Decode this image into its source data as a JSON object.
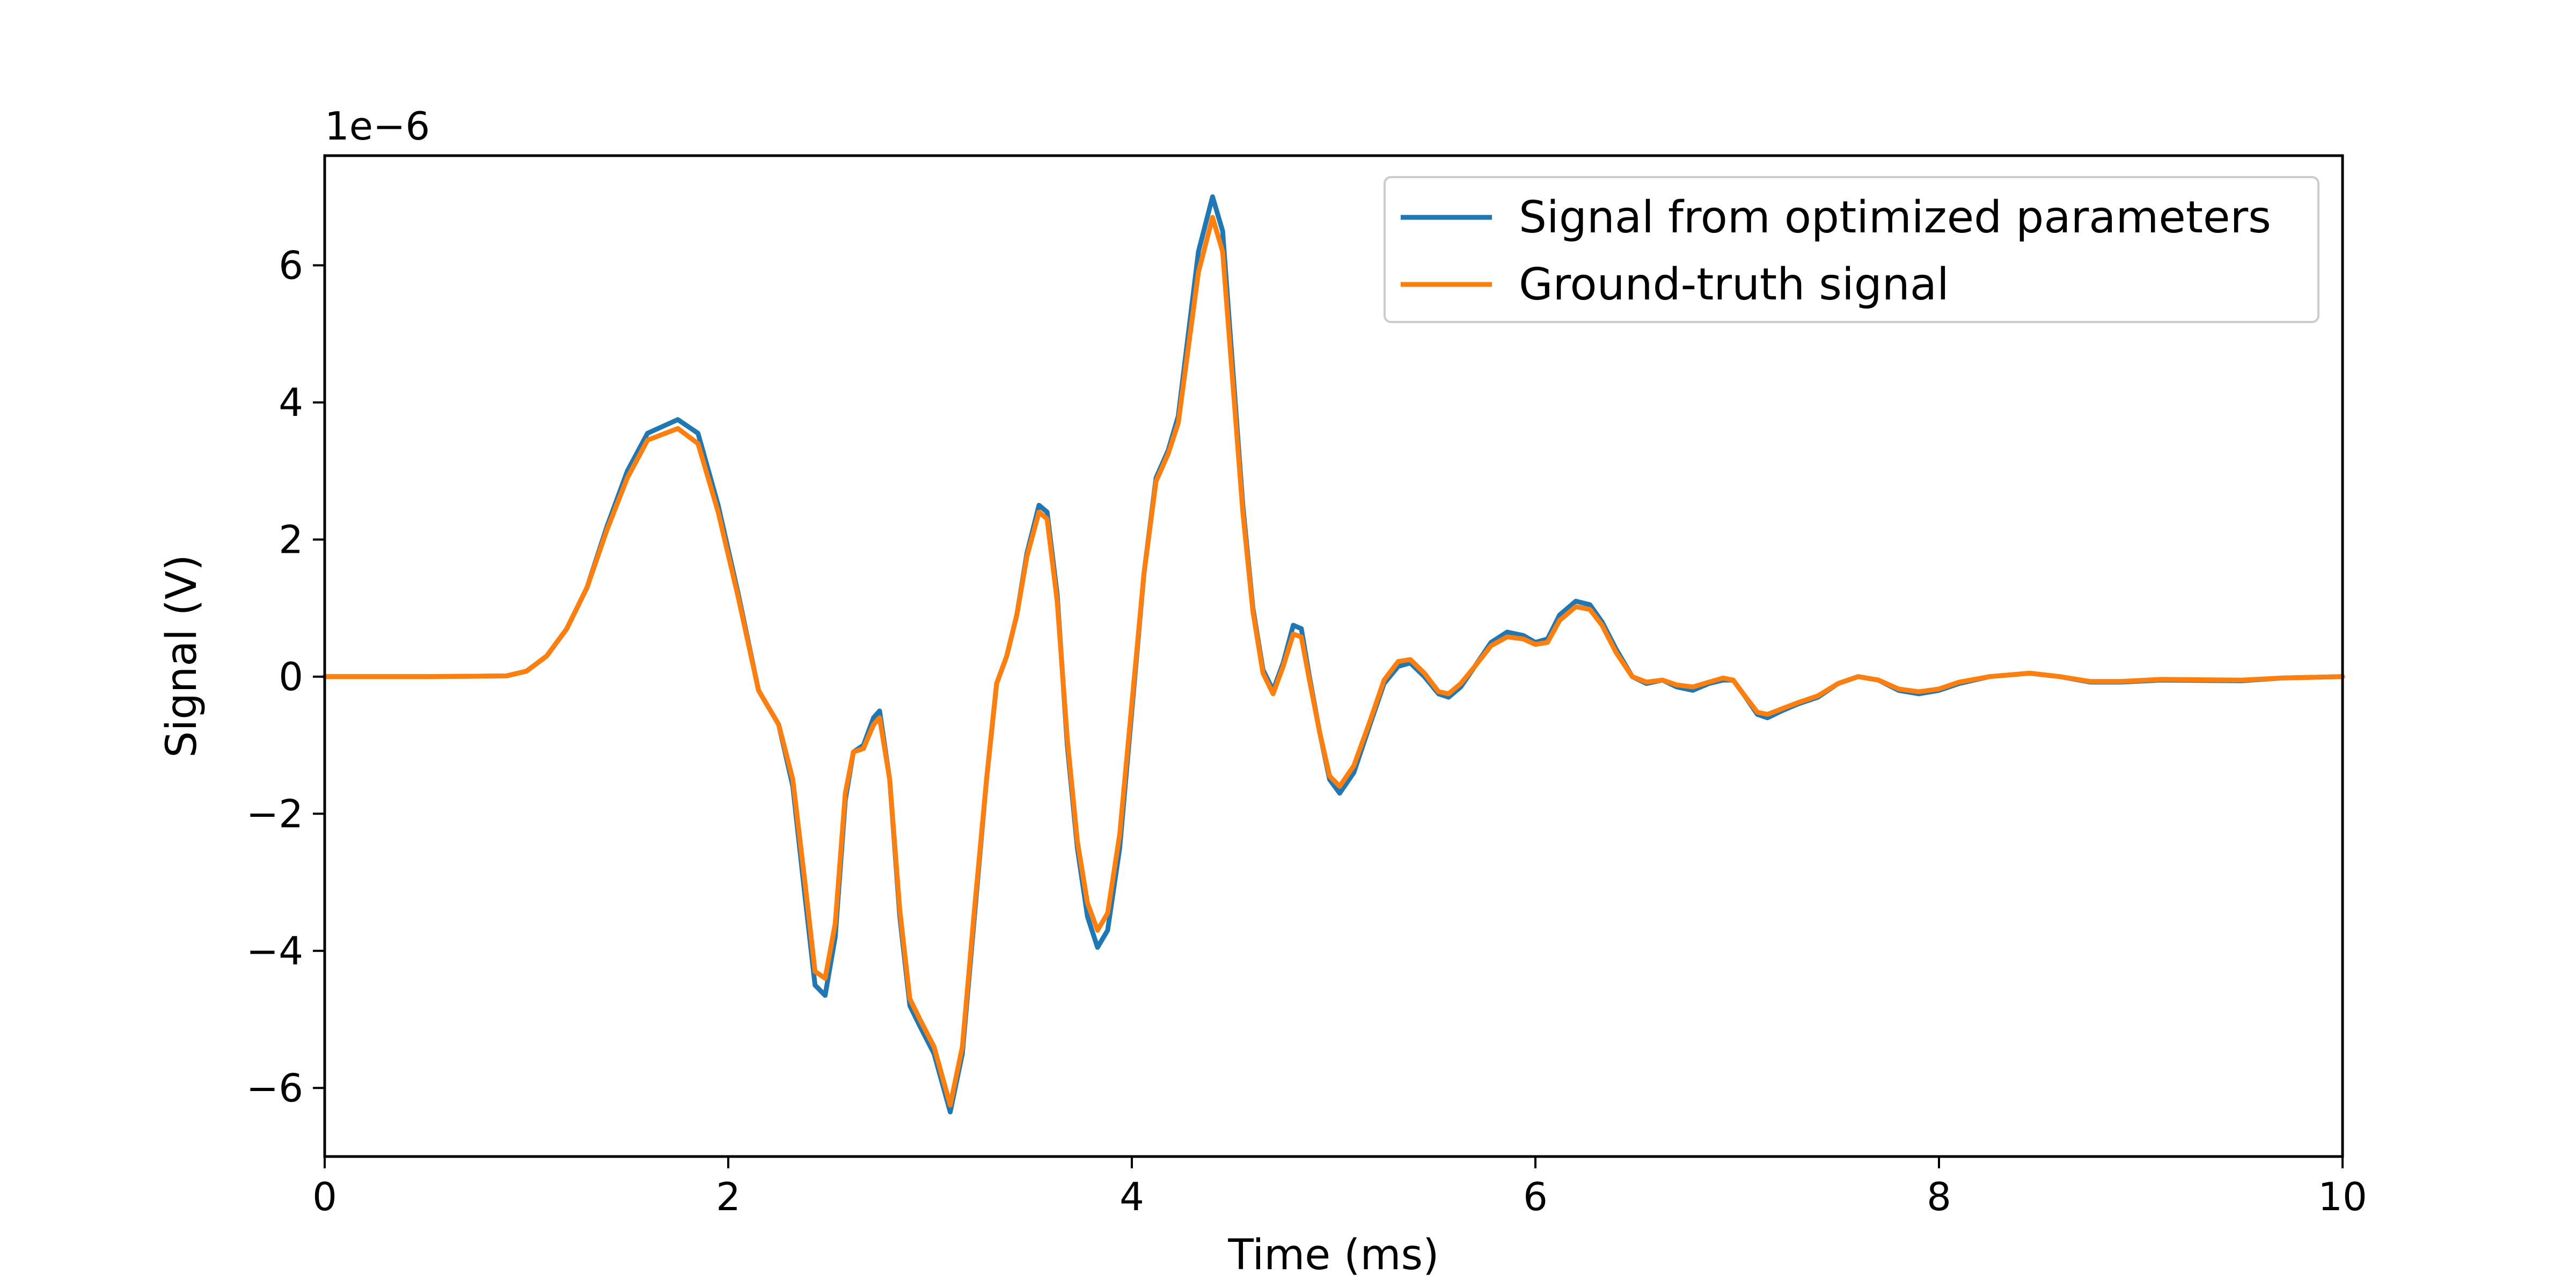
{
  "chart_data": {
    "type": "line",
    "title": "",
    "xlabel": "Time (ms)",
    "ylabel": "Signal (V)",
    "y_offset_label": "1e−6",
    "xlim": [
      0,
      10
    ],
    "ylim": [
      -7e-06,
      7.6e-06
    ],
    "x_ticks": [
      0,
      2,
      4,
      6,
      8,
      10
    ],
    "x_tick_labels": [
      "0",
      "2",
      "4",
      "6",
      "8",
      "10"
    ],
    "y_ticks": [
      -6e-06,
      -4e-06,
      -2e-06,
      0,
      2e-06,
      4e-06,
      6e-06
    ],
    "y_tick_labels": [
      "−6",
      "−4",
      "−2",
      "0",
      "2",
      "4",
      "6"
    ],
    "grid": false,
    "legend_position": "top-right",
    "series": [
      {
        "name": "Signal from optimized parameters",
        "color": "#1f77b4",
        "points": [
          [
            0,
            0
          ],
          [
            0.5,
            0
          ],
          [
            0.9,
            0.01
          ],
          [
            1.0,
            0.08
          ],
          [
            1.1,
            0.3
          ],
          [
            1.2,
            0.7
          ],
          [
            1.3,
            1.3
          ],
          [
            1.4,
            2.2
          ],
          [
            1.5,
            3.0
          ],
          [
            1.6,
            3.55
          ],
          [
            1.75,
            3.75
          ],
          [
            1.85,
            3.55
          ],
          [
            1.95,
            2.5
          ],
          [
            2.05,
            1.2
          ],
          [
            2.15,
            -0.2
          ],
          [
            2.25,
            -0.7
          ],
          [
            2.32,
            -1.6
          ],
          [
            2.38,
            -3.2
          ],
          [
            2.43,
            -4.5
          ],
          [
            2.48,
            -4.65
          ],
          [
            2.53,
            -3.8
          ],
          [
            2.58,
            -1.8
          ],
          [
            2.62,
            -1.1
          ],
          [
            2.67,
            -1.0
          ],
          [
            2.72,
            -0.6
          ],
          [
            2.75,
            -0.5
          ],
          [
            2.8,
            -1.5
          ],
          [
            2.85,
            -3.5
          ],
          [
            2.9,
            -4.8
          ],
          [
            2.95,
            -5.1
          ],
          [
            3.02,
            -5.5
          ],
          [
            3.1,
            -6.35
          ],
          [
            3.16,
            -5.5
          ],
          [
            3.22,
            -3.5
          ],
          [
            3.28,
            -1.5
          ],
          [
            3.33,
            -0.1
          ],
          [
            3.38,
            0.3
          ],
          [
            3.43,
            0.9
          ],
          [
            3.48,
            1.8
          ],
          [
            3.54,
            2.5
          ],
          [
            3.58,
            2.4
          ],
          [
            3.63,
            1.2
          ],
          [
            3.68,
            -1.0
          ],
          [
            3.73,
            -2.5
          ],
          [
            3.78,
            -3.5
          ],
          [
            3.83,
            -3.95
          ],
          [
            3.88,
            -3.7
          ],
          [
            3.94,
            -2.5
          ],
          [
            4.0,
            -0.5
          ],
          [
            4.06,
            1.5
          ],
          [
            4.12,
            2.9
          ],
          [
            4.18,
            3.3
          ],
          [
            4.23,
            3.8
          ],
          [
            4.28,
            5.0
          ],
          [
            4.33,
            6.2
          ],
          [
            4.4,
            7.0
          ],
          [
            4.45,
            6.5
          ],
          [
            4.5,
            4.5
          ],
          [
            4.55,
            2.5
          ],
          [
            4.6,
            1.0
          ],
          [
            4.65,
            0.1
          ],
          [
            4.7,
            -0.2
          ],
          [
            4.75,
            0.2
          ],
          [
            4.8,
            0.75
          ],
          [
            4.84,
            0.7
          ],
          [
            4.88,
            0.0
          ],
          [
            4.93,
            -0.8
          ],
          [
            4.98,
            -1.5
          ],
          [
            5.03,
            -1.7
          ],
          [
            5.1,
            -1.4
          ],
          [
            5.18,
            -0.7
          ],
          [
            5.25,
            -0.1
          ],
          [
            5.32,
            0.15
          ],
          [
            5.38,
            0.2
          ],
          [
            5.45,
            0.0
          ],
          [
            5.52,
            -0.25
          ],
          [
            5.57,
            -0.3
          ],
          [
            5.63,
            -0.15
          ],
          [
            5.7,
            0.15
          ],
          [
            5.78,
            0.5
          ],
          [
            5.86,
            0.65
          ],
          [
            5.94,
            0.6
          ],
          [
            6.0,
            0.5
          ],
          [
            6.06,
            0.55
          ],
          [
            6.12,
            0.9
          ],
          [
            6.2,
            1.1
          ],
          [
            6.27,
            1.05
          ],
          [
            6.33,
            0.8
          ],
          [
            6.4,
            0.4
          ],
          [
            6.48,
            0.0
          ],
          [
            6.55,
            -0.1
          ],
          [
            6.63,
            -0.05
          ],
          [
            6.7,
            -0.15
          ],
          [
            6.78,
            -0.2
          ],
          [
            6.86,
            -0.1
          ],
          [
            6.93,
            -0.05
          ],
          [
            6.98,
            -0.05
          ],
          [
            7.03,
            -0.25
          ],
          [
            7.1,
            -0.55
          ],
          [
            7.15,
            -0.6
          ],
          [
            7.22,
            -0.5
          ],
          [
            7.3,
            -0.4
          ],
          [
            7.4,
            -0.3
          ],
          [
            7.5,
            -0.1
          ],
          [
            7.6,
            0.0
          ],
          [
            7.7,
            -0.05
          ],
          [
            7.8,
            -0.2
          ],
          [
            7.9,
            -0.25
          ],
          [
            8.0,
            -0.2
          ],
          [
            8.1,
            -0.1
          ],
          [
            8.25,
            0.0
          ],
          [
            8.45,
            0.05
          ],
          [
            8.6,
            0.0
          ],
          [
            8.75,
            -0.08
          ],
          [
            8.9,
            -0.08
          ],
          [
            9.1,
            -0.05
          ],
          [
            9.5,
            -0.06
          ],
          [
            9.7,
            -0.02
          ],
          [
            10.0,
            0.0
          ]
        ]
      },
      {
        "name": "Ground-truth signal",
        "color": "#ff7f0e",
        "points": [
          [
            0,
            0
          ],
          [
            0.5,
            0
          ],
          [
            0.9,
            0.01
          ],
          [
            1.0,
            0.08
          ],
          [
            1.1,
            0.3
          ],
          [
            1.2,
            0.7
          ],
          [
            1.3,
            1.3
          ],
          [
            1.4,
            2.15
          ],
          [
            1.5,
            2.9
          ],
          [
            1.6,
            3.45
          ],
          [
            1.75,
            3.62
          ],
          [
            1.85,
            3.4
          ],
          [
            1.95,
            2.4
          ],
          [
            2.05,
            1.15
          ],
          [
            2.15,
            -0.2
          ],
          [
            2.25,
            -0.7
          ],
          [
            2.32,
            -1.5
          ],
          [
            2.38,
            -3.0
          ],
          [
            2.43,
            -4.3
          ],
          [
            2.48,
            -4.4
          ],
          [
            2.53,
            -3.6
          ],
          [
            2.58,
            -1.7
          ],
          [
            2.62,
            -1.1
          ],
          [
            2.67,
            -1.05
          ],
          [
            2.72,
            -0.7
          ],
          [
            2.75,
            -0.6
          ],
          [
            2.8,
            -1.5
          ],
          [
            2.85,
            -3.4
          ],
          [
            2.9,
            -4.7
          ],
          [
            2.95,
            -5.0
          ],
          [
            3.02,
            -5.4
          ],
          [
            3.1,
            -6.25
          ],
          [
            3.16,
            -5.4
          ],
          [
            3.22,
            -3.4
          ],
          [
            3.28,
            -1.5
          ],
          [
            3.33,
            -0.1
          ],
          [
            3.38,
            0.3
          ],
          [
            3.43,
            0.9
          ],
          [
            3.48,
            1.75
          ],
          [
            3.54,
            2.4
          ],
          [
            3.58,
            2.3
          ],
          [
            3.63,
            1.1
          ],
          [
            3.68,
            -0.9
          ],
          [
            3.73,
            -2.4
          ],
          [
            3.78,
            -3.3
          ],
          [
            3.83,
            -3.7
          ],
          [
            3.88,
            -3.45
          ],
          [
            3.94,
            -2.3
          ],
          [
            4.0,
            -0.4
          ],
          [
            4.06,
            1.5
          ],
          [
            4.12,
            2.85
          ],
          [
            4.18,
            3.25
          ],
          [
            4.23,
            3.7
          ],
          [
            4.28,
            4.8
          ],
          [
            4.33,
            5.9
          ],
          [
            4.4,
            6.7
          ],
          [
            4.45,
            6.2
          ],
          [
            4.5,
            4.3
          ],
          [
            4.55,
            2.4
          ],
          [
            4.6,
            0.95
          ],
          [
            4.65,
            0.05
          ],
          [
            4.7,
            -0.25
          ],
          [
            4.75,
            0.15
          ],
          [
            4.8,
            0.62
          ],
          [
            4.84,
            0.58
          ],
          [
            4.88,
            -0.05
          ],
          [
            4.93,
            -0.8
          ],
          [
            4.98,
            -1.45
          ],
          [
            5.03,
            -1.6
          ],
          [
            5.1,
            -1.3
          ],
          [
            5.18,
            -0.65
          ],
          [
            5.25,
            -0.05
          ],
          [
            5.32,
            0.22
          ],
          [
            5.38,
            0.25
          ],
          [
            5.45,
            0.05
          ],
          [
            5.52,
            -0.22
          ],
          [
            5.57,
            -0.25
          ],
          [
            5.63,
            -0.1
          ],
          [
            5.7,
            0.15
          ],
          [
            5.78,
            0.45
          ],
          [
            5.86,
            0.58
          ],
          [
            5.94,
            0.55
          ],
          [
            6.0,
            0.47
          ],
          [
            6.06,
            0.5
          ],
          [
            6.12,
            0.82
          ],
          [
            6.2,
            1.02
          ],
          [
            6.27,
            0.98
          ],
          [
            6.33,
            0.75
          ],
          [
            6.4,
            0.35
          ],
          [
            6.48,
            0.0
          ],
          [
            6.55,
            -0.08
          ],
          [
            6.63,
            -0.05
          ],
          [
            6.7,
            -0.12
          ],
          [
            6.78,
            -0.15
          ],
          [
            6.86,
            -0.08
          ],
          [
            6.93,
            -0.02
          ],
          [
            6.98,
            -0.05
          ],
          [
            7.03,
            -0.25
          ],
          [
            7.1,
            -0.52
          ],
          [
            7.15,
            -0.55
          ],
          [
            7.22,
            -0.47
          ],
          [
            7.3,
            -0.38
          ],
          [
            7.4,
            -0.28
          ],
          [
            7.5,
            -0.1
          ],
          [
            7.6,
            0.0
          ],
          [
            7.7,
            -0.05
          ],
          [
            7.8,
            -0.18
          ],
          [
            7.9,
            -0.22
          ],
          [
            8.0,
            -0.18
          ],
          [
            8.1,
            -0.08
          ],
          [
            8.25,
            0.0
          ],
          [
            8.45,
            0.05
          ],
          [
            8.6,
            0.0
          ],
          [
            8.75,
            -0.07
          ],
          [
            8.9,
            -0.07
          ],
          [
            9.1,
            -0.04
          ],
          [
            9.5,
            -0.05
          ],
          [
            9.7,
            -0.02
          ],
          [
            10.0,
            0.0
          ]
        ]
      }
    ],
    "y_series_unit_scale": 1e-06
  }
}
